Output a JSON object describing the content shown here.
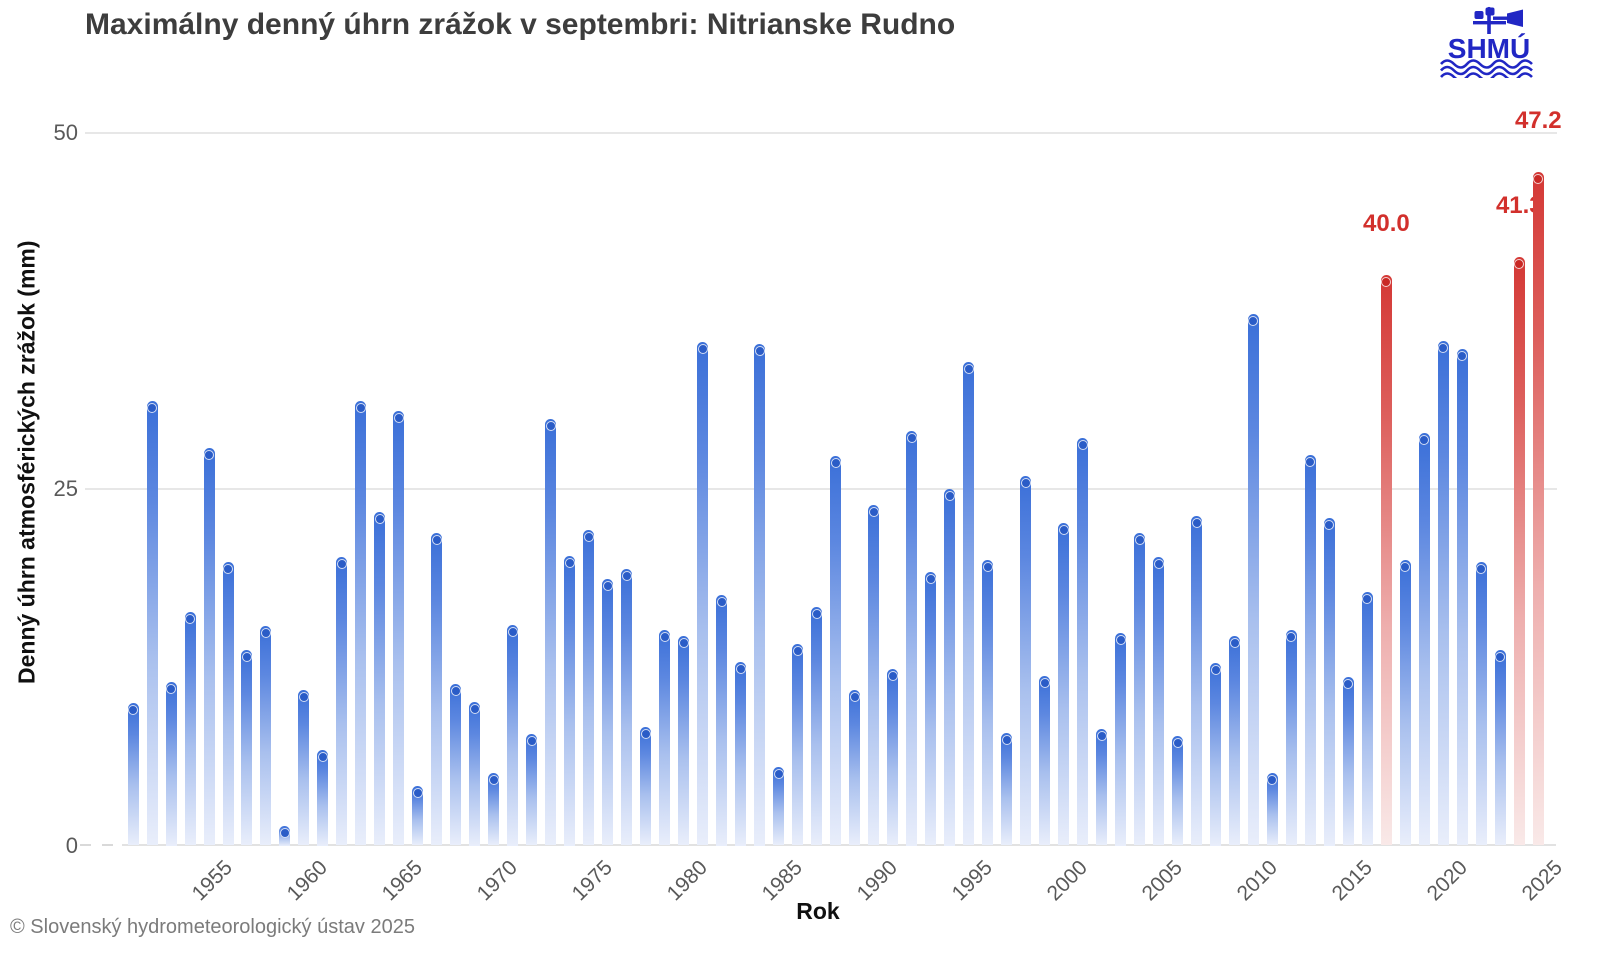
{
  "header": {
    "title": "Maximálny denný úhrn zrážok v septembri: Nitrianske Rudno",
    "logo_text": "SHMÚ"
  },
  "footer": {
    "copyright": "© Slovenský hydrometeorologický ústav 2025"
  },
  "axes": {
    "x_title": "Rok",
    "y_title": "Denný úhrn atmosférických zrážok (mm)",
    "y_ticks": [
      0,
      25,
      50
    ],
    "x_ticks": [
      1955,
      1960,
      1965,
      1970,
      1975,
      1980,
      1985,
      1990,
      1995,
      2000,
      2005,
      2010,
      2015,
      2020,
      2025
    ]
  },
  "colors": {
    "bar_blue": "#3a6fd8",
    "bar_blue_cap": "#2a5cc7",
    "bar_red": "#d43835",
    "bar_red_cap": "#c92824",
    "annotation_red": "#d2302c",
    "logo_blue": "#2127c4",
    "gridline": "#e7e7e7",
    "title_text": "#3d3d3d",
    "tick_text": "#595959"
  },
  "chart_data": {
    "type": "bar",
    "title": "Maximálny denný úhrn zrážok v septembri: Nitrianske Rudno",
    "xlabel": "Rok",
    "ylabel": "Denný úhrn atmosférických zrážok (mm)",
    "ylim": [
      0,
      50
    ],
    "grid": "horizontal-25-50",
    "legend": "none",
    "years": [
      1951,
      1952,
      1953,
      1954,
      1955,
      1956,
      1957,
      1958,
      1959,
      1960,
      1961,
      1962,
      1963,
      1964,
      1965,
      1966,
      1967,
      1968,
      1969,
      1970,
      1971,
      1972,
      1973,
      1974,
      1975,
      1976,
      1977,
      1978,
      1979,
      1980,
      1981,
      1982,
      1983,
      1984,
      1985,
      1986,
      1987,
      1988,
      1989,
      1990,
      1991,
      1992,
      1993,
      1994,
      1995,
      1996,
      1997,
      1998,
      1999,
      2000,
      2001,
      2002,
      2003,
      2004,
      2005,
      2006,
      2007,
      2008,
      2009,
      2010,
      2011,
      2012,
      2013,
      2014,
      2015,
      2016,
      2017,
      2018,
      2019,
      2020,
      2021,
      2022,
      2023,
      2024,
      2025
    ],
    "values": [
      10.0,
      31.2,
      11.5,
      16.4,
      27.9,
      19.9,
      13.7,
      15.4,
      1.4,
      10.9,
      6.7,
      20.2,
      31.2,
      23.4,
      30.5,
      4.2,
      21.9,
      11.3,
      10.1,
      5.1,
      15.5,
      7.8,
      29.9,
      20.3,
      22.1,
      18.7,
      19.4,
      8.3,
      15.1,
      14.7,
      35.3,
      17.6,
      12.9,
      35.2,
      5.5,
      14.1,
      16.7,
      27.3,
      10.9,
      23.9,
      12.4,
      29.1,
      19.2,
      25.0,
      33.9,
      20.0,
      7.9,
      25.9,
      11.9,
      22.6,
      28.6,
      8.2,
      14.9,
      21.9,
      20.2,
      7.7,
      23.1,
      12.8,
      14.7,
      37.3,
      5.1,
      15.1,
      27.4,
      23.0,
      11.8,
      17.8,
      40.0,
      20.0,
      28.9,
      35.4,
      34.8,
      19.9,
      13.7,
      41.3,
      47.2
    ],
    "highlight_years": [
      2017,
      2024,
      2025
    ],
    "annotations": [
      {
        "year": 2017,
        "label": "40.0"
      },
      {
        "year": 2024,
        "label": "41.3"
      },
      {
        "year": 2025,
        "label": "47.2"
      }
    ]
  }
}
